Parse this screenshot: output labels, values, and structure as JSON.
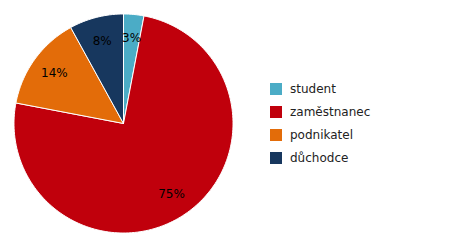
{
  "chart_data": {
    "type": "pie",
    "categories": [
      "student",
      "zaměstnanec",
      "podnikatel",
      "důchodce"
    ],
    "values": [
      3,
      75,
      14,
      8
    ],
    "value_labels": [
      "3%",
      "75%",
      "14%",
      "8%"
    ],
    "colors": [
      "#4BACC6",
      "#C0000C",
      "#E36C09",
      "#17375E"
    ],
    "data_labels": true,
    "legend": "right"
  }
}
